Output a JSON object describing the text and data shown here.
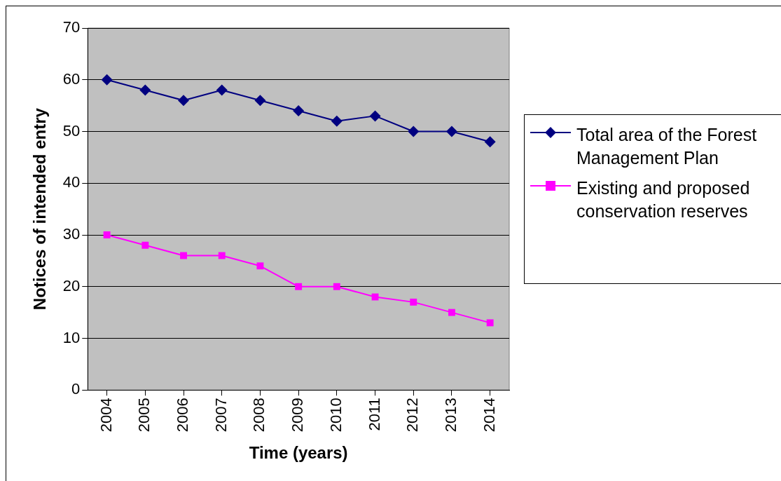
{
  "chart_data": {
    "type": "line",
    "xlabel": "Time (years)",
    "ylabel": "Notices of intended entry",
    "categories": [
      "2004",
      "2005",
      "2006",
      "2007",
      "2008",
      "2009",
      "2010",
      "2011",
      "2012",
      "2013",
      "2014"
    ],
    "series": [
      {
        "name": "Total area of the Forest Management Plan",
        "color": "#000080",
        "marker": "diamond",
        "values": [
          60,
          58,
          56,
          58,
          56,
          54,
          52,
          53,
          50,
          50,
          48
        ]
      },
      {
        "name": "Existing and proposed conservation reserves",
        "color": "#ff00ff",
        "marker": "square",
        "values": [
          30,
          28,
          26,
          26,
          24,
          20,
          20,
          18,
          17,
          15,
          13
        ]
      }
    ],
    "ylim": [
      0,
      70
    ],
    "yticks": [
      0,
      10,
      20,
      30,
      40,
      50,
      60,
      70
    ],
    "grid": "y",
    "legend": "right"
  }
}
